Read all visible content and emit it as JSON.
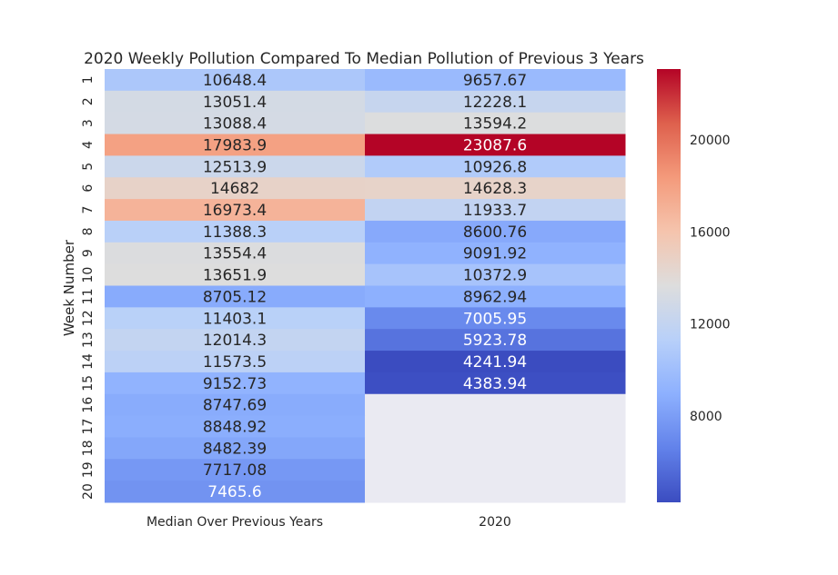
{
  "chart_data": {
    "type": "heatmap",
    "title": "2020 Weekly Pollution Compared To Median Pollution of Previous 3 Years",
    "xlabel": "",
    "ylabel": "Week Number",
    "columns": [
      "Median Over Previous Years",
      "2020"
    ],
    "rows": [
      "1",
      "2",
      "3",
      "4",
      "5",
      "6",
      "7",
      "8",
      "9",
      "10",
      "11",
      "12",
      "13",
      "14",
      "15",
      "16",
      "17",
      "18",
      "19",
      "20"
    ],
    "values": [
      [
        10648.4,
        9657.67
      ],
      [
        13051.4,
        12228.1
      ],
      [
        13088.4,
        13594.2
      ],
      [
        17983.9,
        23087.6
      ],
      [
        12513.9,
        10926.8
      ],
      [
        14682,
        14628.3
      ],
      [
        16973.4,
        11933.7
      ],
      [
        11388.3,
        8600.76
      ],
      [
        13554.4,
        9091.92
      ],
      [
        13651.9,
        10372.9
      ],
      [
        8705.12,
        8962.94
      ],
      [
        11403.1,
        7005.95
      ],
      [
        12014.3,
        5923.78
      ],
      [
        11573.5,
        4241.94
      ],
      [
        9152.73,
        4383.94
      ],
      [
        8747.69,
        null
      ],
      [
        8848.92,
        null
      ],
      [
        8482.39,
        null
      ],
      [
        7717.08,
        null
      ],
      [
        7465.6,
        null
      ]
    ],
    "colormap": "coolwarm",
    "vmin": 4241.94,
    "vmax": 23087.6,
    "colorbar_ticks": [
      8000,
      12000,
      16000,
      20000
    ],
    "missing_color": "#eaeaf2"
  }
}
